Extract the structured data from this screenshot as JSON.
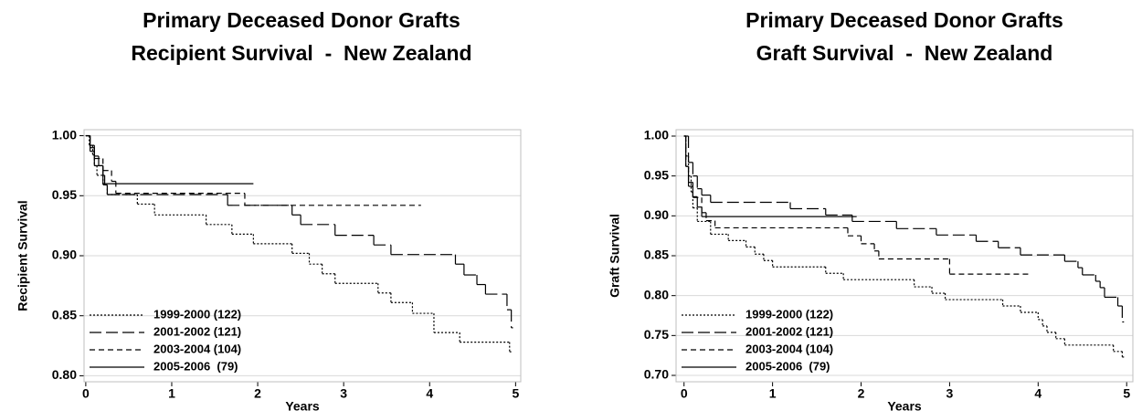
{
  "chart_data": [
    {
      "type": "step",
      "title": [
        "Primary Deceased Donor Grafts",
        "Recipient Survival  -  New Zealand"
      ],
      "ylabel": "Recipient Survival",
      "xlabel": "Years",
      "xlim": [
        -0.02,
        5.06
      ],
      "ylim": [
        0.795,
        1.005
      ],
      "xticks": [
        0,
        1,
        2,
        3,
        4,
        5
      ],
      "yticks": [
        {
          "value": 0.8,
          "label": "0.80"
        },
        0.85,
        {
          "value": 0.9,
          "label": "0.90"
        },
        0.95,
        {
          "value": 1,
          "label": "1.00"
        }
      ],
      "grid": true,
      "legend": "lower left",
      "series": [
        {
          "name": "1999-2000 (122)",
          "color": "#000000",
          "linestyle": "dotted",
          "x": [
            0,
            0.04,
            0.08,
            0.1,
            0.13,
            0.2,
            0.25,
            0.6,
            0.8,
            1.4,
            1.7,
            1.95,
            2.4,
            2.6,
            2.75,
            2.9,
            3.4,
            3.55,
            3.8,
            4.05,
            4.35,
            4.93,
            4.95
          ],
          "values": [
            1,
            0.992,
            0.984,
            0.975,
            0.967,
            0.959,
            0.951,
            0.943,
            0.934,
            0.926,
            0.918,
            0.91,
            0.902,
            0.893,
            0.885,
            0.877,
            0.869,
            0.861,
            0.852,
            0.836,
            0.828,
            0.82,
            0.82
          ]
        },
        {
          "name": "2001-2002 (121)",
          "color": "#000000",
          "linestyle": "longdash",
          "x": [
            0,
            0.05,
            0.1,
            0.15,
            0.2,
            0.22,
            0.25,
            1.65,
            2.4,
            2.5,
            2.9,
            3.35,
            3.55,
            4.3,
            4.4,
            4.55,
            4.65,
            4.9,
            4.95,
            4.97
          ],
          "values": [
            1,
            0.992,
            0.983,
            0.975,
            0.967,
            0.959,
            0.951,
            0.942,
            0.934,
            0.926,
            0.917,
            0.909,
            0.901,
            0.893,
            0.884,
            0.876,
            0.868,
            0.855,
            0.84,
            0.84
          ]
        },
        {
          "name": "2003-2004 (104)",
          "color": "#000000",
          "linestyle": "dashed",
          "x": [
            0,
            0.05,
            0.1,
            0.2,
            0.3,
            0.35,
            1.85,
            3.9
          ],
          "values": [
            1,
            0.99,
            0.981,
            0.971,
            0.962,
            0.952,
            0.942,
            0.942
          ]
        },
        {
          "name": "2005-2006  (79)",
          "color": "#000000",
          "linestyle": "solid",
          "x": [
            0,
            0.05,
            0.1,
            0.2,
            1.95
          ],
          "values": [
            1,
            0.987,
            0.975,
            0.96,
            0.96
          ]
        }
      ]
    },
    {
      "type": "step",
      "title": [
        "Primary Deceased Donor Grafts",
        "Graft Survival  -  New Zealand"
      ],
      "ylabel": "Graft Survival",
      "xlabel": "Years",
      "xlim": [
        -0.09,
        5.07
      ],
      "ylim": [
        0.692,
        1.008
      ],
      "xticks": [
        0,
        1,
        2,
        3,
        4,
        5
      ],
      "yticks": [
        {
          "value": 0.7,
          "label": "0.70"
        },
        0.75,
        {
          "value": 0.8,
          "label": "0.80"
        },
        0.85,
        {
          "value": 0.9,
          "label": "0.90"
        },
        0.95,
        {
          "value": 1,
          "label": "1.00"
        }
      ],
      "grid": true,
      "legend": "lower left",
      "series": [
        {
          "name": "1999-2000 (122)",
          "color": "#000000",
          "linestyle": "dotted",
          "x": [
            0,
            0.02,
            0.05,
            0.08,
            0.1,
            0.15,
            0.3,
            0.5,
            0.7,
            0.8,
            0.9,
            1.0,
            1.6,
            1.8,
            2.6,
            2.8,
            2.95,
            3.6,
            3.8,
            4.0,
            4.05,
            4.1,
            4.2,
            4.3,
            4.85,
            4.95,
            4.97
          ],
          "values": [
            1,
            0.975,
            0.95,
            0.93,
            0.91,
            0.893,
            0.877,
            0.869,
            0.861,
            0.852,
            0.844,
            0.836,
            0.828,
            0.82,
            0.811,
            0.803,
            0.795,
            0.787,
            0.779,
            0.77,
            0.762,
            0.754,
            0.746,
            0.738,
            0.73,
            0.723,
            0.723
          ]
        },
        {
          "name": "2001-2002 (121)",
          "color": "#000000",
          "linestyle": "longdash",
          "x": [
            0,
            0.05,
            0.1,
            0.15,
            0.2,
            0.3,
            1.2,
            1.6,
            1.9,
            2.4,
            2.85,
            3.3,
            3.55,
            3.8,
            4.3,
            4.45,
            4.5,
            4.65,
            4.7,
            4.75,
            4.9,
            4.95,
            4.97
          ],
          "values": [
            1,
            0.967,
            0.95,
            0.934,
            0.926,
            0.917,
            0.909,
            0.901,
            0.893,
            0.884,
            0.876,
            0.868,
            0.86,
            0.851,
            0.843,
            0.835,
            0.826,
            0.818,
            0.81,
            0.798,
            0.787,
            0.767,
            0.767
          ]
        },
        {
          "name": "2003-2004 (104)",
          "color": "#000000",
          "linestyle": "dashed",
          "x": [
            0,
            0.02,
            0.05,
            0.1,
            0.2,
            0.25,
            0.35,
            1.85,
            2.0,
            2.15,
            2.2,
            3.0,
            3.9
          ],
          "values": [
            1,
            0.962,
            0.942,
            0.923,
            0.904,
            0.894,
            0.885,
            0.875,
            0.865,
            0.856,
            0.846,
            0.827,
            0.827
          ]
        },
        {
          "name": "2005-2006  (79)",
          "color": "#000000",
          "linestyle": "solid",
          "x": [
            0,
            0.02,
            0.05,
            0.1,
            0.15,
            0.2,
            1.95
          ],
          "values": [
            1,
            0.962,
            0.937,
            0.924,
            0.911,
            0.899,
            0.899
          ]
        }
      ]
    }
  ]
}
